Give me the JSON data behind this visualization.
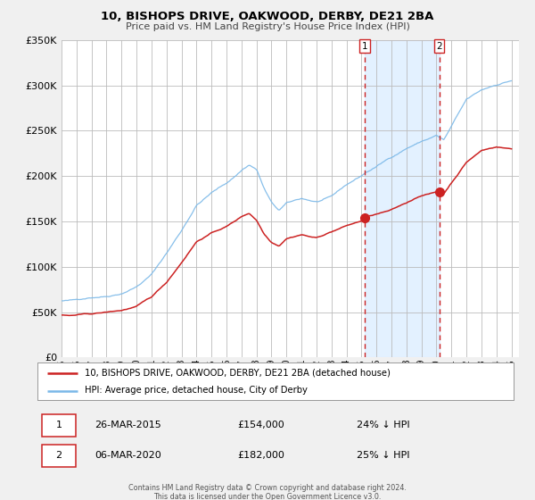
{
  "title": "10, BISHOPS DRIVE, OAKWOOD, DERBY, DE21 2BA",
  "subtitle": "Price paid vs. HM Land Registry's House Price Index (HPI)",
  "legend_line1": "10, BISHOPS DRIVE, OAKWOOD, DERBY, DE21 2BA (detached house)",
  "legend_line2": "HPI: Average price, detached house, City of Derby",
  "footer1": "Contains HM Land Registry data © Crown copyright and database right 2024.",
  "footer2": "This data is licensed under the Open Government Licence v3.0.",
  "event1_date": "26-MAR-2015",
  "event1_price": "£154,000",
  "event1_pct": "24% ↓ HPI",
  "event2_date": "06-MAR-2020",
  "event2_price": "£182,000",
  "event2_pct": "25% ↓ HPI",
  "event1_year": 2015.23,
  "event2_year": 2020.18,
  "event1_price_val": 154000,
  "event2_price_val": 182000,
  "hpi_color": "#7ab8e8",
  "property_color": "#cc2222",
  "background_color": "#f0f0f0",
  "plot_bg_color": "#ffffff",
  "shade_color": "#ddeeff",
  "grid_color": "#bbbbbb",
  "ylim": [
    0,
    350000
  ],
  "xlim_start": 1995,
  "xlim_end": 2025.5,
  "yticks": [
    0,
    50000,
    100000,
    150000,
    200000,
    250000,
    300000,
    350000
  ]
}
